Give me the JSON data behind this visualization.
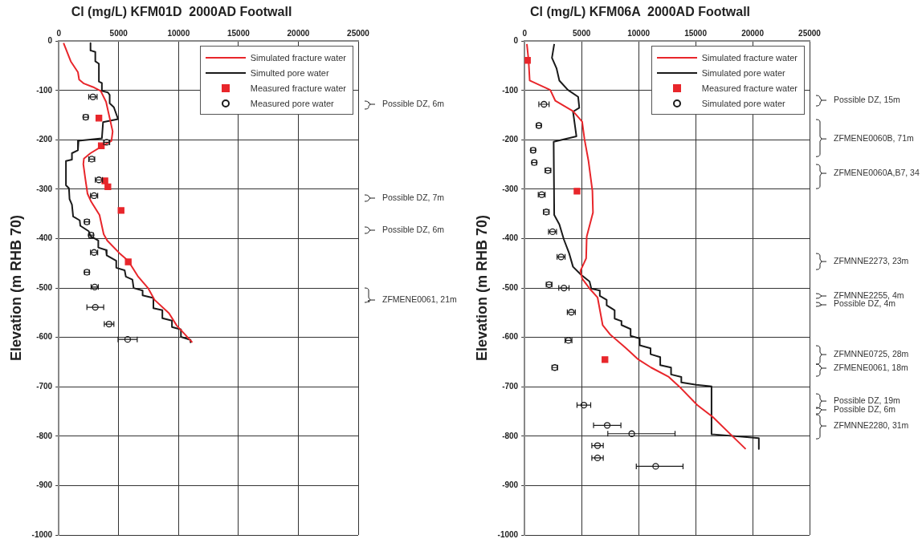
{
  "chart_data": [
    {
      "type": "line",
      "title": "Cl (mg/L) KFM01D  2000AD Footwall",
      "ylabel": "Elevation (m RHB 70)",
      "xlim": [
        0,
        25000
      ],
      "xticks": [
        0,
        5000,
        10000,
        15000,
        20000,
        25000
      ],
      "ylim": [
        -1000,
        0
      ],
      "yticks": [
        0,
        -100,
        -200,
        -300,
        -400,
        -500,
        -600,
        -700,
        -800,
        -900,
        -1000
      ],
      "grid": true,
      "legend": "top right",
      "series": [
        {
          "name": "Simulated fracture water",
          "type": "line",
          "color": "#e8262b",
          "marker": "none",
          "x": [
            400,
            1000,
            1600,
            1700,
            2100,
            2850,
            3500,
            3950,
            4150,
            4500,
            4400,
            3600,
            2650,
            2100,
            2050,
            2200,
            2400,
            2700,
            3400,
            3750,
            4050,
            5050,
            5800,
            6600,
            7450,
            8000,
            9200,
            9850,
            11150
          ],
          "values": [
            -4,
            -41,
            -63,
            -78,
            -86,
            -93,
            -101,
            -123,
            -145,
            -183,
            -202,
            -213,
            -227,
            -238,
            -249,
            -276,
            -309,
            -325,
            -352,
            -391,
            -404,
            -429,
            -445,
            -476,
            -500,
            -524,
            -551,
            -576,
            -610
          ]
        },
        {
          "name": "Simulted pore water",
          "type": "line",
          "color": "#1a1a1a",
          "marker": "none",
          "x": [
            2650,
            2650,
            3050,
            3050,
            3350,
            3350,
            3600,
            3600,
            4100,
            4250,
            4250,
            4600,
            4950,
            3700,
            3600,
            1650,
            1600,
            1100,
            1100,
            600,
            600,
            850,
            900,
            1100,
            1200,
            1750,
            1800,
            2500,
            2650,
            3300,
            3300,
            3950,
            4000,
            4800,
            4800,
            5500,
            5600,
            6150,
            6250,
            7000,
            7000,
            7900,
            7900,
            8650,
            8650,
            9450,
            9450,
            10200,
            10200,
            11000,
            11000
          ],
          "values": [
            -4,
            -19,
            -22,
            -41,
            -46,
            -82,
            -85,
            -101,
            -104,
            -109,
            -126,
            -134,
            -158,
            -164,
            -197,
            -202,
            -221,
            -227,
            -240,
            -243,
            -292,
            -298,
            -320,
            -331,
            -355,
            -363,
            -374,
            -385,
            -395,
            -404,
            -418,
            -423,
            -434,
            -445,
            -459,
            -464,
            -477,
            -483,
            -500,
            -505,
            -515,
            -520,
            -541,
            -545,
            -561,
            -566,
            -579,
            -584,
            -599,
            -605,
            -610
          ]
        },
        {
          "name": "Measured fracture water",
          "type": "scatter",
          "color": "#e8262b",
          "marker": "square",
          "x": [
            3350,
            3550,
            3850,
            4100,
            5200,
            5800
          ],
          "values": [
            -156,
            -212,
            -283,
            -295,
            -343,
            -447
          ]
        },
        {
          "name": "Measured pore water",
          "type": "scatter",
          "color": "#1a1a1a",
          "marker": "circle",
          "x": [
            2850,
            2250,
            4000,
            2750,
            3350,
            2950,
            2350,
            2700,
            2950,
            2350,
            3000,
            3050,
            4200,
            5750
          ],
          "values": [
            -113,
            -154,
            -205,
            -239,
            -281,
            -313,
            -366,
            -393,
            -428,
            -468,
            -498,
            -539,
            -573,
            -604
          ],
          "xerrors": [
            350,
            200,
            250,
            250,
            300,
            300,
            200,
            200,
            300,
            200,
            300,
            700,
            400,
            800
          ]
        }
      ],
      "annotations": [
        "Possible DZ, 6m",
        "Possible DZ, 7m",
        "Possible DZ, 6m",
        "ZFMENE0061, 21m"
      ]
    },
    {
      "type": "line",
      "title": "Cl (mg/L) KFM06A  2000AD Footwall",
      "ylabel": "Elevation (m RHB 70)",
      "xlim": [
        0,
        25000
      ],
      "xticks": [
        0,
        5000,
        10000,
        15000,
        20000,
        25000
      ],
      "ylim": [
        -1000,
        0
      ],
      "yticks": [
        0,
        -100,
        -200,
        -300,
        -400,
        -500,
        -600,
        -700,
        -800,
        -900,
        -1000
      ],
      "grid": true,
      "legend": "top right",
      "series": [
        {
          "name": "Simulated fracture water",
          "type": "line",
          "color": "#e8262b",
          "marker": "none",
          "x": [
            200,
            350,
            450,
            2250,
            2700,
            4250,
            5050,
            5250,
            5600,
            5950,
            6000,
            5450,
            5400,
            4900,
            5050,
            5700,
            6400,
            6850,
            7500,
            8850,
            10000,
            11100,
            12650,
            13550,
            15150,
            16500,
            18150,
            19400
          ],
          "values": [
            -6,
            -39,
            -80,
            -99,
            -121,
            -142,
            -163,
            -198,
            -242,
            -303,
            -347,
            -396,
            -440,
            -465,
            -481,
            -501,
            -519,
            -575,
            -594,
            -621,
            -645,
            -661,
            -680,
            -699,
            -737,
            -761,
            -798,
            -826
          ]
        },
        {
          "name": "Simulated pore water",
          "type": "line",
          "color": "#1a1a1a",
          "marker": "none",
          "x": [
            2600,
            2400,
            2800,
            3050,
            3800,
            4700,
            4800,
            4250,
            4550,
            2550,
            2600,
            3050,
            3450,
            3900,
            4250,
            4950,
            5700,
            5850,
            6600,
            6600,
            7200,
            7200,
            7900,
            7900,
            8500,
            8500,
            9300,
            9300,
            10100,
            10100,
            11050,
            11050,
            11900,
            11900,
            12850,
            12850,
            13750,
            13750,
            15050,
            16400,
            16400,
            20550,
            20550
          ],
          "values": [
            -6,
            -34,
            -55,
            -80,
            -99,
            -113,
            -135,
            -143,
            -193,
            -204,
            -352,
            -371,
            -402,
            -429,
            -457,
            -473,
            -487,
            -501,
            -505,
            -516,
            -524,
            -535,
            -545,
            -562,
            -567,
            -575,
            -583,
            -597,
            -602,
            -616,
            -622,
            -634,
            -640,
            -656,
            -661,
            -675,
            -680,
            -691,
            -696,
            -699,
            -796,
            -804,
            -826
          ]
        },
        {
          "name": "Measured fracture water",
          "type": "scatter",
          "color": "#e8262b",
          "marker": "square",
          "x": [
            250,
            4600,
            7050
          ],
          "values": [
            -39,
            -304,
            -645
          ]
        },
        {
          "name": "Simulated pore water",
          "type": "scatter",
          "color": "#1a1a1a",
          "marker": "circle",
          "x": [
            1700,
            1250,
            750,
            850,
            2050,
            1500,
            1900,
            2450,
            3200,
            2150,
            3450,
            4100,
            3850,
            2650,
            5200,
            7250,
            9400,
            6400,
            6400,
            11500
          ],
          "values": [
            -128,
            -171,
            -221,
            -246,
            -262,
            -311,
            -346,
            -386,
            -437,
            -493,
            -500,
            -549,
            -606,
            -661,
            -737,
            -778,
            -795,
            -819,
            -844,
            -861
          ],
          "xerrors": [
            450,
            200,
            200,
            200,
            250,
            300,
            250,
            350,
            350,
            250,
            450,
            350,
            300,
            250,
            600,
            1200,
            [
              7300,
              13200
            ],
            500,
            500,
            [
              9800,
              13900
            ]
          ]
        }
      ],
      "annotations": [
        "Possible DZ, 15m",
        "ZFMENE0060B, 71m",
        "ZFMENE0060A,B7, 34",
        "ZFMNNE2273, 23m",
        "ZFMNNE2255, 4m",
        "Possible DZ, 4m",
        "ZFMNNE0725, 28m",
        "ZFMENE0061, 18m",
        "Possible DZ, 19m",
        "Possible DZ, 6m",
        "ZFMNNE2280, 31m"
      ]
    }
  ]
}
